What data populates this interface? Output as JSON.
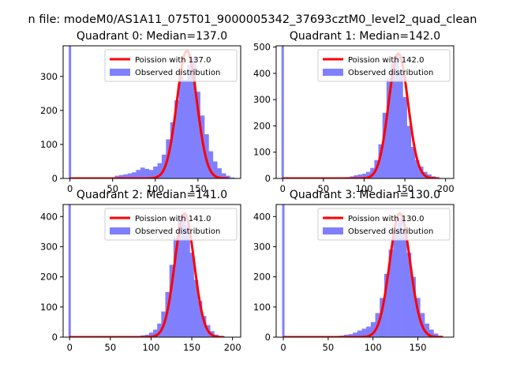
{
  "figure": {
    "suptitle": "n file: modeM0/AS1A11_075T01_9000005342_37693cztM0_level2_quad_clean",
    "colors": {
      "hist": "#8080ff",
      "fit": "#ff0000",
      "legend_frame": "#cccccc"
    }
  },
  "chart_data": [
    {
      "type": "bar",
      "title": "Quadrant 0: Median=137.0",
      "xlim": [
        -8,
        200
      ],
      "ylim": [
        0,
        390
      ],
      "xticks": [
        0,
        50,
        100,
        150
      ],
      "yticks": [
        0,
        100,
        200,
        300
      ],
      "legend": {
        "loc": "upper right",
        "entries": [
          "Poission with 137.0",
          "Observed distribution"
        ]
      },
      "zero_bar": 390,
      "hist": {
        "x": [
          55,
          60,
          65,
          70,
          75,
          80,
          85,
          90,
          95,
          100,
          105,
          110,
          115,
          120,
          125,
          130,
          135,
          140,
          145,
          150,
          155,
          160,
          165,
          170,
          175,
          180,
          185,
          190
        ],
        "values": [
          8,
          10,
          12,
          15,
          18,
          25,
          32,
          28,
          25,
          35,
          45,
          70,
          115,
          165,
          230,
          300,
          290,
          335,
          355,
          255,
          185,
          130,
          80,
          50,
          30,
          15,
          8,
          3
        ]
      },
      "fit": {
        "mean": 137.0,
        "peak": 375,
        "range": [
          0,
          186
        ]
      }
    },
    {
      "type": "bar",
      "title": "Quadrant 1: Median=142.0",
      "xlim": [
        -8,
        210
      ],
      "ylim": [
        0,
        505
      ],
      "xticks": [
        0,
        50,
        100,
        150,
        200
      ],
      "yticks": [
        0,
        100,
        200,
        300,
        400,
        500
      ],
      "legend": {
        "loc": "upper right",
        "entries": [
          "Poission with 142.0",
          "Observed distribution"
        ]
      },
      "zero_bar": 505,
      "hist": {
        "x": [
          70,
          75,
          80,
          85,
          90,
          95,
          100,
          105,
          110,
          115,
          120,
          125,
          130,
          135,
          140,
          145,
          150,
          155,
          160,
          165,
          170,
          175,
          180,
          185,
          190,
          195
        ],
        "values": [
          2,
          3,
          5,
          8,
          12,
          15,
          18,
          25,
          40,
          70,
          130,
          250,
          380,
          440,
          465,
          410,
          310,
          200,
          120,
          70,
          45,
          25,
          15,
          8,
          4,
          2
        ]
      },
      "fit": {
        "mean": 142.0,
        "peak": 475,
        "range": [
          0,
          192
        ]
      }
    },
    {
      "type": "bar",
      "title": "Quadrant 2: Median=141.0",
      "xlim": [
        -8,
        210
      ],
      "ylim": [
        0,
        440
      ],
      "xticks": [
        0,
        50,
        100,
        150,
        200
      ],
      "yticks": [
        0,
        100,
        200,
        300,
        400
      ],
      "legend": {
        "loc": "upper right",
        "entries": [
          "Poission with 141.0",
          "Observed distribution"
        ]
      },
      "zero_bar": 440,
      "hist": {
        "x": [
          80,
          85,
          90,
          95,
          100,
          105,
          110,
          115,
          120,
          125,
          130,
          135,
          140,
          145,
          150,
          155,
          160,
          165,
          170,
          175,
          180,
          185
        ],
        "values": [
          3,
          4,
          6,
          8,
          15,
          25,
          45,
          85,
          150,
          240,
          330,
          395,
          410,
          370,
          280,
          190,
          120,
          70,
          40,
          20,
          8,
          3
        ]
      },
      "fit": {
        "mean": 141.0,
        "peak": 410,
        "range": [
          0,
          190
        ]
      }
    },
    {
      "type": "bar",
      "title": "Quadrant 3: Median=130.0",
      "xlim": [
        -8,
        190
      ],
      "ylim": [
        0,
        440
      ],
      "xticks": [
        0,
        50,
        100,
        150
      ],
      "yticks": [
        0,
        100,
        200,
        300,
        400
      ],
      "legend": {
        "loc": "upper right",
        "entries": [
          "Poission with 130.0",
          "Observed distribution"
        ]
      },
      "zero_bar": 440,
      "hist": {
        "x": [
          60,
          65,
          70,
          75,
          80,
          85,
          90,
          95,
          100,
          105,
          110,
          115,
          120,
          125,
          130,
          135,
          140,
          145,
          150,
          155,
          160,
          165,
          170,
          175
        ],
        "values": [
          3,
          5,
          8,
          10,
          15,
          22,
          28,
          35,
          50,
          80,
          130,
          210,
          290,
          360,
          395,
          360,
          280,
          200,
          130,
          80,
          45,
          25,
          12,
          5
        ]
      },
      "fit": {
        "mean": 130.0,
        "peak": 410,
        "range": [
          0,
          178
        ]
      }
    }
  ]
}
